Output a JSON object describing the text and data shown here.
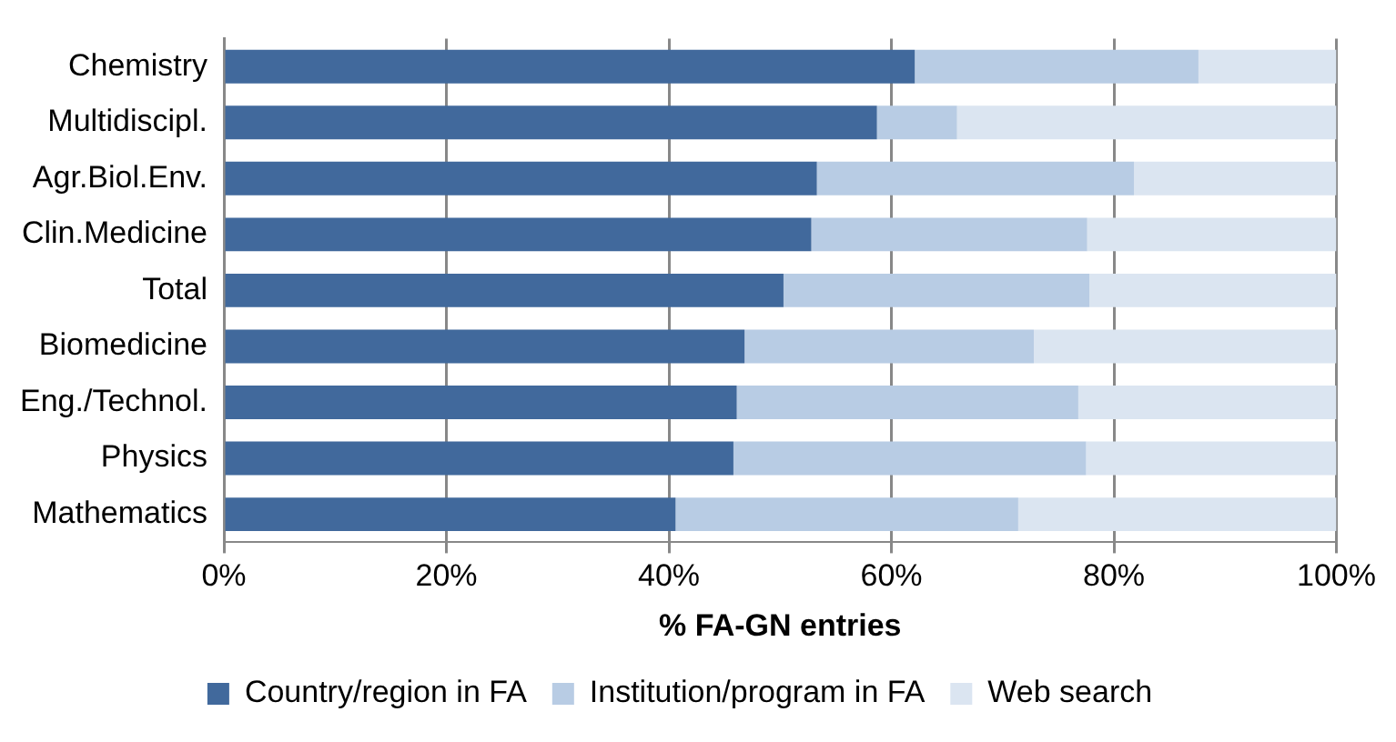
{
  "chart_data": {
    "type": "bar",
    "orientation": "horizontal",
    "stacked": true,
    "xlabel": "% FA-GN entries",
    "categories": [
      "Chemistry",
      "Multidiscipl.",
      "Agr.Biol.Env.",
      "Clin.Medicine",
      "Total",
      "Biomedicine",
      "Eng./Technol.",
      "Physics",
      "Mathematics"
    ],
    "series": [
      {
        "name": "Country/region in FA",
        "color": "#41699c",
        "values": [
          62.1,
          58.7,
          53.3,
          52.8,
          50.3,
          46.8,
          46.1,
          45.8,
          40.6
        ]
      },
      {
        "name": "Institution/program in FA",
        "color": "#b8cce4",
        "values": [
          25.5,
          7.2,
          28.5,
          24.8,
          27.5,
          26.0,
          30.7,
          31.7,
          30.8
        ]
      },
      {
        "name": "Web search",
        "color": "#dbe5f1",
        "values": [
          12.4,
          34.1,
          18.2,
          22.4,
          22.2,
          27.2,
          23.2,
          22.5,
          28.6
        ]
      }
    ],
    "xlim": [
      0,
      100
    ],
    "xticks": [
      {
        "value": 0,
        "label": "0%"
      },
      {
        "value": 20,
        "label": "20%"
      },
      {
        "value": 40,
        "label": "40%"
      },
      {
        "value": 60,
        "label": "60%"
      },
      {
        "value": 80,
        "label": "80%"
      },
      {
        "value": 100,
        "label": "100%"
      }
    ],
    "grid": "x",
    "legend": "bottom"
  }
}
